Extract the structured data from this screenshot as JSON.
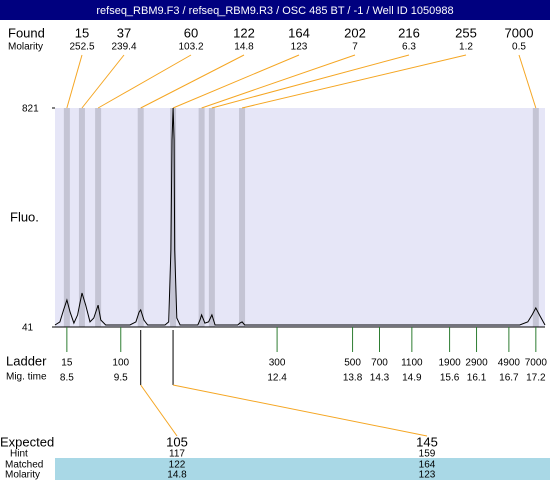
{
  "header": {
    "title": "refseq_RBM9.F3 / refseq_RBM9.R3 / OSC 485 BT / -1 / Well ID 1050988"
  },
  "chart_data": {
    "type": "line",
    "ylabel": "Fluo.",
    "color": "#000000",
    "ylim": [
      41,
      821
    ],
    "yticks": [
      41,
      821
    ],
    "xlim": [
      8.28,
      17.37
    ],
    "x": [
      8.28,
      8.37,
      8.44,
      8.5,
      8.56,
      8.63,
      8.7,
      8.78,
      8.85,
      8.93,
      9.0,
      9.08,
      9.13,
      9.22,
      9.67,
      9.78,
      9.84,
      9.87,
      9.93,
      10.0,
      10.32,
      10.39,
      10.43,
      10.45,
      10.47,
      10.49,
      10.5,
      10.54,
      10.6,
      10.93,
      10.97,
      11.0,
      11.06,
      11.13,
      11.19,
      11.25,
      11.67,
      11.71,
      11.75,
      11.8,
      16.9,
      17.05,
      17.13,
      17.2,
      17.28,
      17.37
    ],
    "values": [
      48,
      59,
      102,
      137,
      94,
      55,
      84,
      162,
      119,
      59,
      73,
      119,
      66,
      48,
      48,
      59,
      94,
      102,
      66,
      48,
      48,
      59,
      315,
      707,
      821,
      707,
      315,
      73,
      48,
      48,
      66,
      84,
      55,
      59,
      84,
      48,
      48,
      55,
      59,
      48,
      48,
      59,
      84,
      109,
      80,
      48
    ],
    "found": {
      "label": "Found",
      "molarity_label": "Molarity",
      "sizes": [
        15,
        37,
        60,
        122,
        164,
        202,
        216,
        255,
        7000
      ],
      "molarity": [
        252.5,
        239.4,
        103.2,
        14.8,
        123,
        7,
        6.3,
        1.2,
        0.5
      ],
      "times": [
        8.5,
        8.78,
        9.08,
        9.87,
        10.47,
        11.0,
        11.19,
        11.75,
        17.2
      ]
    },
    "ladder": {
      "label": "Ladder",
      "time_label": "Mig. time",
      "sizes": [
        15,
        100,
        300,
        500,
        700,
        1100,
        1900,
        2900,
        4900,
        7000
      ],
      "times": [
        8.5,
        9.5,
        12.4,
        13.8,
        14.3,
        14.9,
        15.6,
        16.1,
        16.7,
        17.2
      ]
    },
    "expected": {
      "label": "Expected",
      "hint_label": "Hint",
      "matched_label": "Matched",
      "molarity_label": "Molarity",
      "values": [
        105,
        145
      ],
      "hint": [
        117,
        159
      ],
      "matched": [
        122,
        164
      ],
      "molarity": [
        14.8,
        123
      ],
      "matched_times": [
        9.87,
        10.47
      ]
    }
  }
}
